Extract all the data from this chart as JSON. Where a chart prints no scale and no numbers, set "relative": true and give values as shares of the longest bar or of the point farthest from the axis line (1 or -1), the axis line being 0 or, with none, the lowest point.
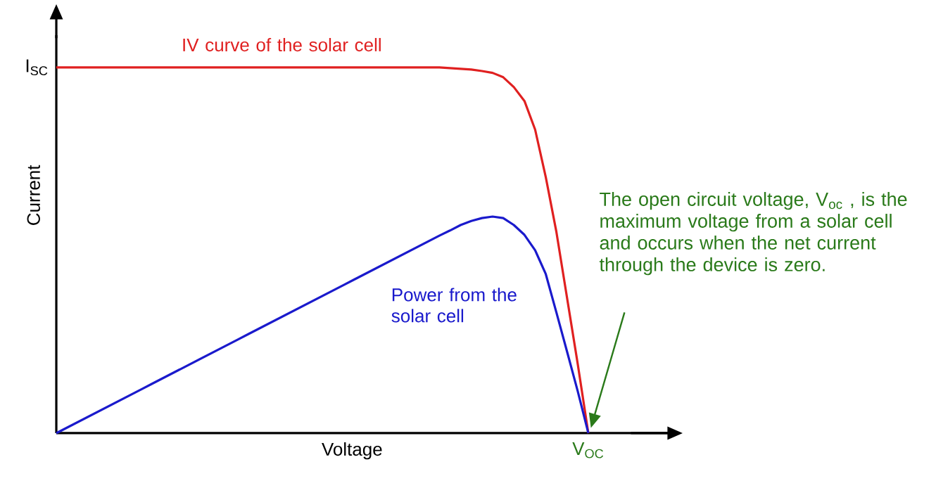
{
  "chart_data": {
    "type": "line",
    "relative": true,
    "xlabel": "Voltage",
    "ylabel": "Current",
    "legend": false,
    "categories": [
      null,
      null,
      null,
      null,
      null,
      null,
      null,
      null,
      null,
      null,
      null,
      null,
      null,
      null,
      null,
      null,
      null,
      null,
      null,
      null,
      null,
      null,
      null,
      null,
      null,
      null,
      null,
      null,
      null,
      null,
      null,
      null,
      null,
      null,
      null,
      null,
      null,
      null,
      null,
      null,
      null,
      null,
      null,
      null,
      null,
      null,
      null,
      null,
      null,
      null,
      null
    ],
    "series": [
      {
        "name": "IV curve of the solar cell",
        "color": "#e02020",
        "values": [
          1,
          1,
          1,
          1,
          1,
          1,
          1,
          1,
          1,
          1,
          1,
          1,
          1,
          1,
          1,
          1,
          1,
          1,
          1,
          1,
          1,
          1,
          1,
          1,
          1,
          1,
          1,
          1,
          1,
          1,
          1,
          1,
          1,
          1,
          1,
          1,
          1,
          0.998,
          0.996,
          0.994,
          0.99,
          0.985,
          0.973,
          0.946,
          0.908,
          0.83,
          0.7,
          0.55,
          0.37,
          0.19,
          0
        ]
      },
      {
        "name": "Power from the solar cell",
        "color": "#1a1acc",
        "values": [
          0,
          0.015,
          0.03,
          0.045,
          0.06,
          0.075,
          0.09,
          0.105,
          0.12,
          0.135,
          0.15,
          0.165,
          0.18,
          0.195,
          0.21,
          0.225,
          0.24,
          0.255,
          0.27,
          0.285,
          0.3,
          0.315,
          0.33,
          0.345,
          0.36,
          0.375,
          0.39,
          0.405,
          0.42,
          0.435,
          0.45,
          0.465,
          0.48,
          0.495,
          0.51,
          0.525,
          0.54,
          0.554,
          0.569,
          0.58,
          0.588,
          0.592,
          0.588,
          0.569,
          0.542,
          0.5,
          0.435,
          0.33,
          0.223,
          0.115,
          0
        ]
      }
    ],
    "annotations": [
      "I$_{SC}$",
      "V$_{OC}$",
      "The open circuit voltage, V$_{oc}$ , is the maximum voltage from a solar cell and occurs when the net current through the device is zero."
    ]
  }
}
